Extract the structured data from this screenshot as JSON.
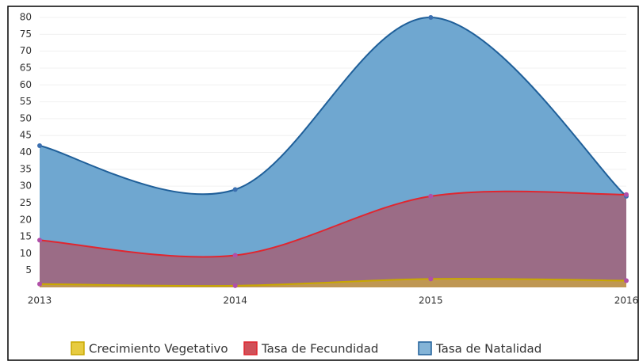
{
  "chart_data": {
    "type": "area",
    "categories": [
      "2013",
      "2014",
      "2015",
      "2016"
    ],
    "series": [
      {
        "name": "Crecimiento Vegetativo",
        "color": "#e3c21f",
        "line_color": "#c9a800",
        "values": [
          1,
          0.5,
          2.5,
          2
        ]
      },
      {
        "name": "Tasa de Fecundidad",
        "color": "#c8323c",
        "line_color": "#e0262f",
        "values": [
          14,
          9.5,
          27,
          27.5
        ]
      },
      {
        "name": "Tasa de Natalidad",
        "color": "#6fa7d0",
        "line_color": "#1f5f99",
        "values": [
          42,
          29,
          80,
          27
        ]
      }
    ],
    "ylim": [
      0,
      80
    ],
    "yticks": [
      5,
      10,
      15,
      20,
      25,
      30,
      35,
      40,
      45,
      50,
      55,
      60,
      65,
      70,
      75,
      80
    ],
    "grid": true,
    "legend": "bottom"
  }
}
